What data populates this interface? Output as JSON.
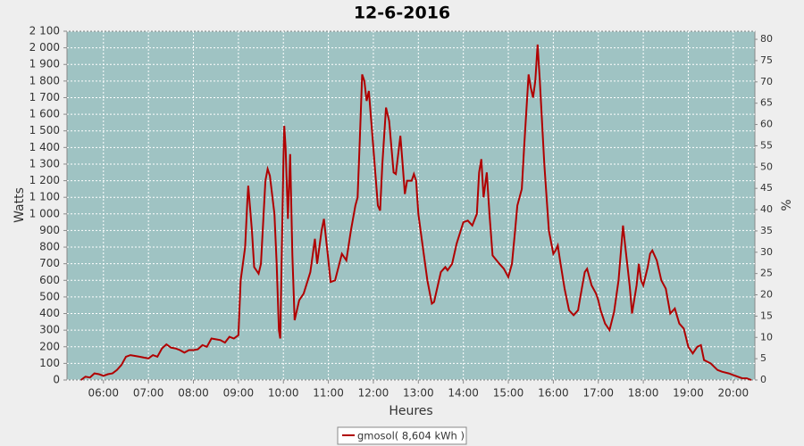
{
  "chart_data": {
    "type": "line",
    "title": "12-6-2016",
    "x_label": "Heures",
    "y_label": "Watts",
    "y2_label": "%",
    "x": [
      5.5,
      5.6,
      5.7,
      5.8,
      5.9,
      6.0,
      6.1,
      6.2,
      6.3,
      6.4,
      6.5,
      6.6,
      6.7,
      6.8,
      6.9,
      7.0,
      7.1,
      7.2,
      7.3,
      7.4,
      7.5,
      7.6,
      7.7,
      7.8,
      7.9,
      8.0,
      8.1,
      8.2,
      8.3,
      8.4,
      8.5,
      8.6,
      8.7,
      8.8,
      8.9,
      9.0,
      9.05,
      9.1,
      9.15,
      9.2,
      9.22,
      9.3,
      9.35,
      9.45,
      9.5,
      9.6,
      9.65,
      9.7,
      9.8,
      9.85,
      9.9,
      9.93,
      10.0,
      10.02,
      10.05,
      10.1,
      10.15,
      10.2,
      10.25,
      10.35,
      10.45,
      10.6,
      10.7,
      10.75,
      10.85,
      10.9,
      11.0,
      11.05,
      11.15,
      11.3,
      11.4,
      11.5,
      11.6,
      11.65,
      11.7,
      11.75,
      11.8,
      11.85,
      11.9,
      12.0,
      12.1,
      12.15,
      12.2,
      12.28,
      12.35,
      12.45,
      12.5,
      12.6,
      12.65,
      12.7,
      12.75,
      12.85,
      12.9,
      12.95,
      13.0,
      13.1,
      13.2,
      13.3,
      13.35,
      13.5,
      13.6,
      13.65,
      13.75,
      13.85,
      14.0,
      14.1,
      14.2,
      14.3,
      14.35,
      14.4,
      14.45,
      14.52,
      14.58,
      14.65,
      14.8,
      14.9,
      15.0,
      15.08,
      15.15,
      15.2,
      15.3,
      15.35,
      15.45,
      15.5,
      15.55,
      15.6,
      15.65,
      15.7,
      15.8,
      15.9,
      16.0,
      16.05,
      16.1,
      16.15,
      16.25,
      16.35,
      16.45,
      16.55,
      16.6,
      16.7,
      16.75,
      16.85,
      16.95,
      17.0,
      17.05,
      17.15,
      17.25,
      17.35,
      17.45,
      17.55,
      17.6,
      17.7,
      17.75,
      17.85,
      17.9,
      17.95,
      18.0,
      18.1,
      18.15,
      18.2,
      18.3,
      18.4,
      18.5,
      18.6,
      18.7,
      18.8,
      18.9,
      19.0,
      19.1,
      19.2,
      19.28,
      19.35,
      19.5,
      19.65,
      19.75,
      19.9,
      20.0,
      20.1,
      20.2,
      20.3,
      20.4
    ],
    "series": [
      {
        "name": "gmosol( 8,604 kWh )",
        "color": "#b00000",
        "values": [
          0,
          20,
          15,
          40,
          35,
          25,
          35,
          40,
          60,
          90,
          140,
          150,
          145,
          140,
          135,
          130,
          150,
          140,
          190,
          215,
          195,
          190,
          180,
          165,
          180,
          180,
          185,
          210,
          200,
          250,
          245,
          240,
          225,
          260,
          250,
          270,
          600,
          700,
          800,
          1080,
          1170,
          900,
          680,
          640,
          700,
          1200,
          1270,
          1230,
          1000,
          700,
          300,
          250,
          1300,
          1530,
          1400,
          970,
          1360,
          750,
          360,
          480,
          520,
          650,
          850,
          700,
          900,
          970,
          720,
          590,
          600,
          760,
          720,
          900,
          1050,
          1100,
          1450,
          1840,
          1800,
          1680,
          1740,
          1400,
          1050,
          1020,
          1300,
          1640,
          1560,
          1250,
          1240,
          1470,
          1300,
          1120,
          1200,
          1200,
          1240,
          1200,
          1000,
          800,
          600,
          460,
          470,
          650,
          680,
          660,
          700,
          820,
          950,
          960,
          930,
          1000,
          1250,
          1330,
          1100,
          1250,
          1000,
          750,
          700,
          670,
          620,
          700,
          900,
          1050,
          1150,
          1400,
          1840,
          1760,
          1700,
          1800,
          2020,
          1800,
          1300,
          900,
          760,
          780,
          810,
          720,
          550,
          420,
          390,
          420,
          500,
          650,
          670,
          570,
          520,
          480,
          420,
          340,
          300,
          410,
          600,
          930,
          800,
          560,
          400,
          570,
          700,
          600,
          570,
          680,
          760,
          780,
          720,
          600,
          550,
          400,
          430,
          340,
          310,
          200,
          160,
          200,
          210,
          120,
          100,
          60,
          50,
          40,
          30,
          20,
          10,
          10,
          0
        ]
      }
    ],
    "xlim": [
      5.19,
      20.48
    ],
    "xticks": [
      {
        "value": 6,
        "label": "06:00"
      },
      {
        "value": 7,
        "label": "07:00"
      },
      {
        "value": 8,
        "label": "08:00"
      },
      {
        "value": 9,
        "label": "09:00"
      },
      {
        "value": 10,
        "label": "10:00"
      },
      {
        "value": 11,
        "label": "11:00"
      },
      {
        "value": 12,
        "label": "12:00"
      },
      {
        "value": 13,
        "label": "13:00"
      },
      {
        "value": 14,
        "label": "14:00"
      },
      {
        "value": 15,
        "label": "15:00"
      },
      {
        "value": 16,
        "label": "16:00"
      },
      {
        "value": 17,
        "label": "17:00"
      },
      {
        "value": 18,
        "label": "18:00"
      },
      {
        "value": 19,
        "label": "19:00"
      },
      {
        "value": 20,
        "label": "20:00"
      }
    ],
    "ylim": [
      0,
      2100
    ],
    "yticks": [
      0,
      100,
      200,
      300,
      400,
      500,
      600,
      700,
      800,
      900,
      {
        "value": 1000,
        "label": "1 000"
      },
      {
        "value": 1100,
        "label": "1 100"
      },
      {
        "value": 1200,
        "label": "1 200"
      },
      {
        "value": 1300,
        "label": "1 300"
      },
      {
        "value": 1400,
        "label": "1 400"
      },
      {
        "value": 1500,
        "label": "1 500"
      },
      {
        "value": 1600,
        "label": "1 600"
      },
      {
        "value": 1700,
        "label": "1 700"
      },
      {
        "value": 1800,
        "label": "1 800"
      },
      {
        "value": 1900,
        "label": "1 900"
      },
      {
        "value": 2000,
        "label": "2 000"
      },
      {
        "value": 2100,
        "label": "2 100"
      }
    ],
    "y2lim": [
      0,
      81.9
    ],
    "y2ticks": [
      0,
      5,
      10,
      15,
      20,
      25,
      30,
      35,
      40,
      45,
      50,
      55,
      60,
      65,
      70,
      75,
      80
    ],
    "grid": true
  }
}
